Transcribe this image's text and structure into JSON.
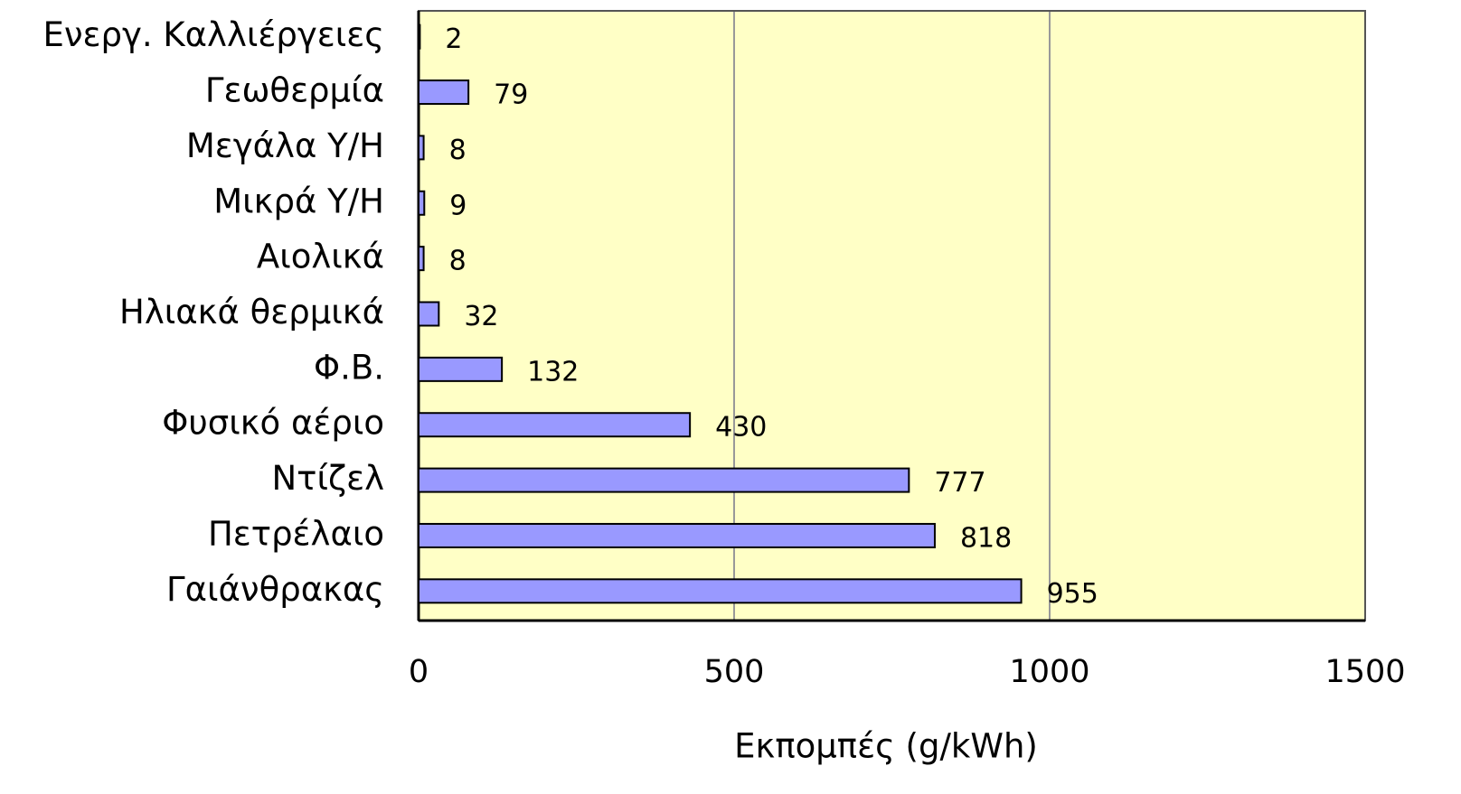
{
  "chart_data": {
    "type": "hbar",
    "categories": [
      "Ενεργ. Καλλιέργειες",
      "Γεωθερμία",
      "Μεγάλα Υ/Η",
      "Μικρά Υ/Η",
      "Αιολικά",
      "Ηλιακά θερμικά",
      "Φ.Β.",
      "Φυσικό αέριο",
      "Ντίζελ",
      "Πετρέλαιο",
      "Γαιάνθρακας"
    ],
    "values": [
      2,
      79,
      8,
      9,
      8,
      32,
      132,
      430,
      777,
      818,
      955
    ],
    "color": "#9999ff",
    "xlabel": "Εκπομπές (g/kWh)",
    "xlim": [
      0,
      1500
    ],
    "xticks": [
      0,
      500,
      1000,
      1500
    ],
    "grid": true
  }
}
